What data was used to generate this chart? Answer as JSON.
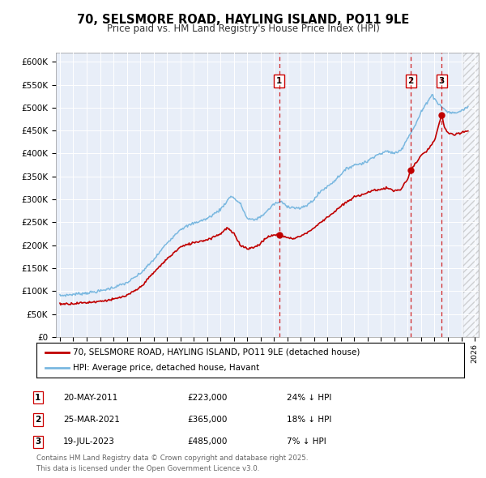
{
  "title": "70, SELSMORE ROAD, HAYLING ISLAND, PO11 9LE",
  "subtitle": "Price paid vs. HM Land Registry's House Price Index (HPI)",
  "ylim": [
    0,
    620000
  ],
  "yticks": [
    0,
    50000,
    100000,
    150000,
    200000,
    250000,
    300000,
    350000,
    400000,
    450000,
    500000,
    550000,
    600000
  ],
  "ytick_labels": [
    "£0",
    "£50K",
    "£100K",
    "£150K",
    "£200K",
    "£250K",
    "£300K",
    "£350K",
    "£400K",
    "£450K",
    "£500K",
    "£550K",
    "£600K"
  ],
  "xlim_start": 1994.7,
  "xlim_end": 2026.3,
  "hpi_color": "#7ab8e0",
  "price_color": "#c00000",
  "vline_color": "#cc0000",
  "plot_bg": "#e8eef8",
  "legend_label_price": "70, SELSMORE ROAD, HAYLING ISLAND, PO11 9LE (detached house)",
  "legend_label_hpi": "HPI: Average price, detached house, Havant",
  "transactions": [
    {
      "num": 1,
      "date": "20-MAY-2011",
      "year": 2011.38,
      "price": 223000,
      "pct": "24%",
      "dir": "↓"
    },
    {
      "num": 2,
      "date": "25-MAR-2021",
      "year": 2021.23,
      "price": 365000,
      "pct": "18%",
      "dir": "↓"
    },
    {
      "num": 3,
      "date": "19-JUL-2023",
      "year": 2023.54,
      "price": 485000,
      "pct": "7%",
      "dir": "↓"
    }
  ],
  "footer_line1": "Contains HM Land Registry data © Crown copyright and database right 2025.",
  "footer_line2": "This data is licensed under the Open Government Licence v3.0.",
  "hatch_region_start": 2025.17,
  "hatch_region_end": 2026.3,
  "hpi_anchors": [
    [
      1995.0,
      90000
    ],
    [
      1996.0,
      93000
    ],
    [
      1997.0,
      96000
    ],
    [
      1998.0,
      100000
    ],
    [
      1999.0,
      108000
    ],
    [
      2000.0,
      118000
    ],
    [
      2001.0,
      138000
    ],
    [
      2002.0,
      168000
    ],
    [
      2003.0,
      205000
    ],
    [
      2004.0,
      235000
    ],
    [
      2005.0,
      248000
    ],
    [
      2006.0,
      258000
    ],
    [
      2007.0,
      278000
    ],
    [
      2007.8,
      308000
    ],
    [
      2008.5,
      290000
    ],
    [
      2009.0,
      258000
    ],
    [
      2009.5,
      255000
    ],
    [
      2010.0,
      262000
    ],
    [
      2010.5,
      275000
    ],
    [
      2011.0,
      290000
    ],
    [
      2011.5,
      295000
    ],
    [
      2012.0,
      285000
    ],
    [
      2012.5,
      282000
    ],
    [
      2013.0,
      280000
    ],
    [
      2013.5,
      288000
    ],
    [
      2014.0,
      300000
    ],
    [
      2014.5,
      318000
    ],
    [
      2015.0,
      328000
    ],
    [
      2015.5,
      340000
    ],
    [
      2016.0,
      355000
    ],
    [
      2016.5,
      368000
    ],
    [
      2017.0,
      375000
    ],
    [
      2017.5,
      378000
    ],
    [
      2018.0,
      383000
    ],
    [
      2018.5,
      395000
    ],
    [
      2019.0,
      400000
    ],
    [
      2019.5,
      405000
    ],
    [
      2020.0,
      400000
    ],
    [
      2020.5,
      408000
    ],
    [
      2021.0,
      435000
    ],
    [
      2021.5,
      458000
    ],
    [
      2022.0,
      490000
    ],
    [
      2022.5,
      515000
    ],
    [
      2022.8,
      528000
    ],
    [
      2023.0,
      520000
    ],
    [
      2023.3,
      508000
    ],
    [
      2023.8,
      495000
    ],
    [
      2024.0,
      490000
    ],
    [
      2024.5,
      488000
    ],
    [
      2025.0,
      493000
    ],
    [
      2025.5,
      502000
    ]
  ],
  "price_anchors": [
    [
      1995.0,
      72000
    ],
    [
      1996.0,
      73000
    ],
    [
      1997.0,
      75000
    ],
    [
      1998.0,
      78000
    ],
    [
      1999.0,
      82000
    ],
    [
      2000.0,
      90000
    ],
    [
      2001.0,
      108000
    ],
    [
      2002.0,
      140000
    ],
    [
      2003.0,
      170000
    ],
    [
      2004.0,
      196000
    ],
    [
      2005.0,
      206000
    ],
    [
      2006.0,
      212000
    ],
    [
      2007.0,
      225000
    ],
    [
      2007.5,
      238000
    ],
    [
      2008.0,
      225000
    ],
    [
      2008.5,
      200000
    ],
    [
      2009.0,
      193000
    ],
    [
      2009.5,
      195000
    ],
    [
      2010.0,
      204000
    ],
    [
      2010.5,
      218000
    ],
    [
      2011.0,
      222000
    ],
    [
      2011.38,
      223000
    ],
    [
      2011.7,
      220000
    ],
    [
      2012.0,
      216000
    ],
    [
      2012.5,
      215000
    ],
    [
      2013.0,
      220000
    ],
    [
      2013.5,
      228000
    ],
    [
      2014.0,
      238000
    ],
    [
      2014.5,
      250000
    ],
    [
      2015.0,
      262000
    ],
    [
      2015.5,
      272000
    ],
    [
      2016.0,
      285000
    ],
    [
      2016.5,
      295000
    ],
    [
      2017.0,
      305000
    ],
    [
      2017.5,
      310000
    ],
    [
      2018.0,
      315000
    ],
    [
      2018.5,
      320000
    ],
    [
      2019.0,
      322000
    ],
    [
      2019.5,
      325000
    ],
    [
      2020.0,
      318000
    ],
    [
      2020.5,
      322000
    ],
    [
      2021.0,
      345000
    ],
    [
      2021.23,
      365000
    ],
    [
      2021.5,
      375000
    ],
    [
      2022.0,
      395000
    ],
    [
      2022.5,
      408000
    ],
    [
      2022.8,
      420000
    ],
    [
      2023.0,
      428000
    ],
    [
      2023.54,
      485000
    ],
    [
      2023.7,
      460000
    ],
    [
      2024.0,
      445000
    ],
    [
      2024.5,
      440000
    ],
    [
      2025.0,
      445000
    ],
    [
      2025.5,
      450000
    ]
  ]
}
